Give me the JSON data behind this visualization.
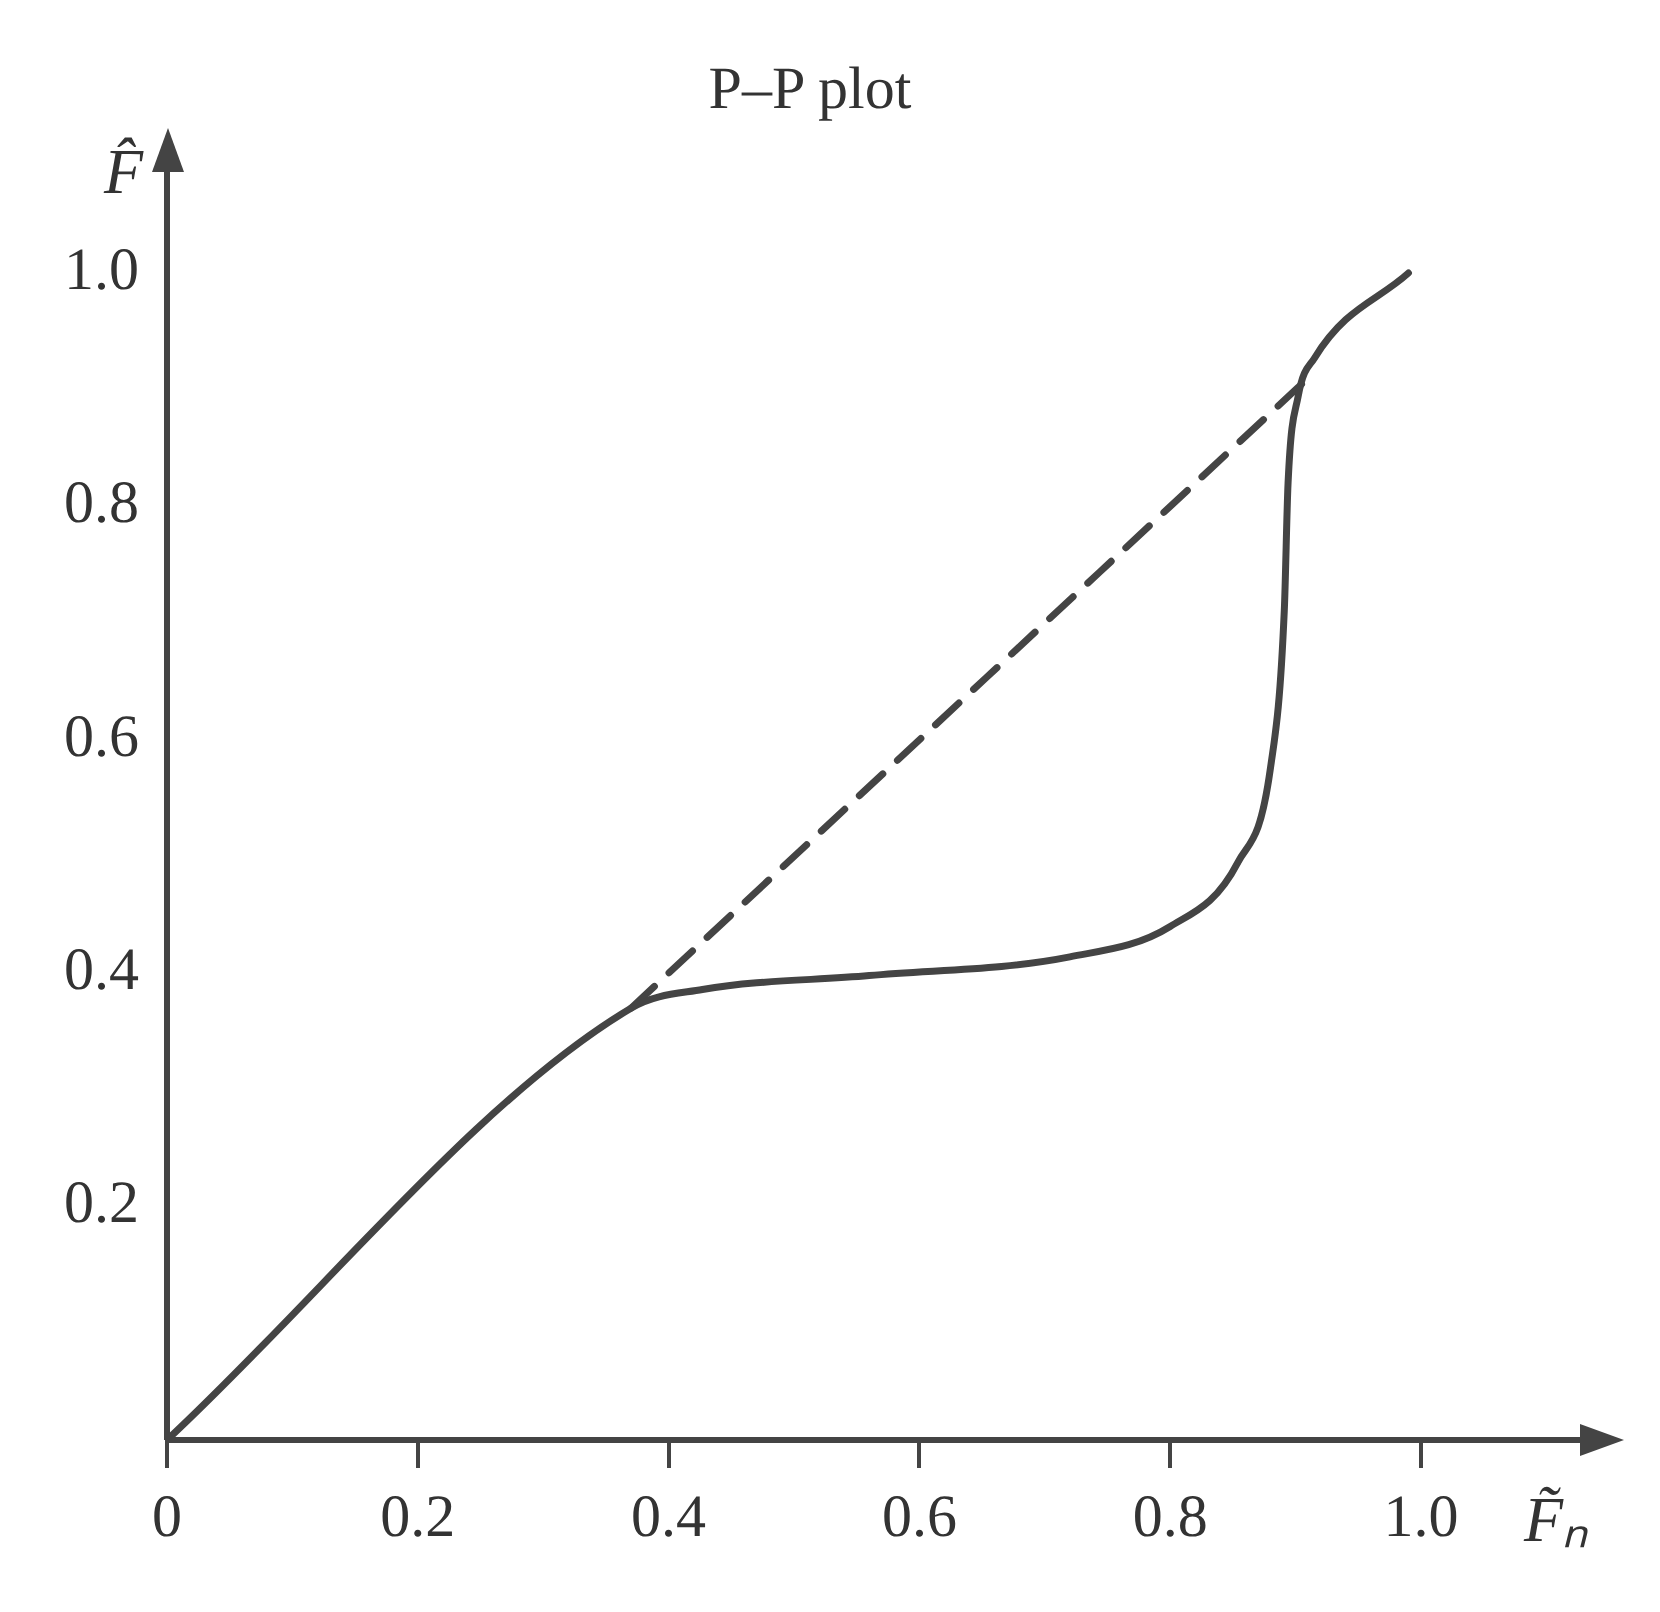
{
  "chart_data": {
    "type": "line",
    "title": "P–P plot",
    "xlabel": "F̃ₙ",
    "ylabel": "F̂",
    "xlim": [
      0,
      1.13
    ],
    "ylim": [
      0,
      1.09
    ],
    "xticks": [
      0,
      0.2,
      0.4,
      0.6,
      0.8,
      {
        "value": 1,
        "label": "1.0"
      }
    ],
    "yticks": [
      {
        "value": 0.2,
        "label": "0.2"
      },
      {
        "value": 0.4,
        "label": "0.4"
      },
      {
        "value": 0.6,
        "label": "0.6"
      },
      {
        "value": 0.8,
        "label": "0.8"
      },
      {
        "value": 1,
        "label": "1.0"
      }
    ],
    "grid": false,
    "legend": false,
    "marker": "none",
    "series": [
      {
        "type": "line",
        "color": "#444444",
        "line_style": "solid",
        "x": [
          0,
          0.37,
          0.427,
          0.56,
          0.72,
          0.8,
          0.854,
          0.88,
          0.891,
          0.894,
          0.902,
          0.915,
          0.99
        ],
        "values": [
          0,
          0.37,
          0.386,
          0.398,
          0.414,
          0.44,
          0.495,
          0.576,
          0.711,
          0.82,
          0.894,
          0.927,
          1.0
        ]
      },
      {
        "type": "line",
        "color": "#444444",
        "line_style": "dashed",
        "x": [
          0.37,
          0.915
        ],
        "values": [
          0.37,
          0.915
        ]
      }
    ]
  }
}
